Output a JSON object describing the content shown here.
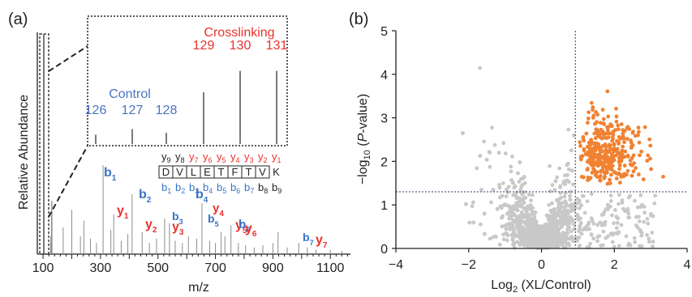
{
  "chart_data": [
    {
      "panel": "(a)",
      "type": "bar",
      "xlabel": "m/z",
      "ylabel": "Relative Abundance",
      "xlim": [
        80,
        1170
      ],
      "xticks": [
        100,
        300,
        500,
        700,
        900,
        1100
      ],
      "peaks": [
        {
          "mz": 126,
          "rel": 0.05
        },
        {
          "mz": 127,
          "rel": 0.08
        },
        {
          "mz": 128,
          "rel": 0.06
        },
        {
          "mz": 129,
          "rel": 0.17
        },
        {
          "mz": 130,
          "rel": 0.24
        },
        {
          "mz": 131,
          "rel": 0.24
        },
        {
          "mz": 170,
          "rel": 0.12
        },
        {
          "mz": 200,
          "rel": 0.2
        },
        {
          "mz": 230,
          "rel": 0.08
        },
        {
          "mz": 242,
          "rel": 0.15
        },
        {
          "mz": 265,
          "rel": 0.07
        },
        {
          "mz": 286,
          "rel": 0.05
        },
        {
          "mz": 309,
          "rel": 0.4
        },
        {
          "mz": 336,
          "rel": 0.11
        },
        {
          "mz": 346,
          "rel": 0.18
        },
        {
          "mz": 372,
          "rel": 0.06
        },
        {
          "mz": 395,
          "rel": 0.09
        },
        {
          "mz": 410,
          "rel": 0.27
        },
        {
          "mz": 445,
          "rel": 0.1
        },
        {
          "mz": 470,
          "rel": 0.05
        },
        {
          "mz": 495,
          "rel": 0.07
        },
        {
          "mz": 523,
          "rel": 0.16
        },
        {
          "mz": 540,
          "rel": 0.14
        },
        {
          "mz": 560,
          "rel": 0.06
        },
        {
          "mz": 585,
          "rel": 0.05
        },
        {
          "mz": 606,
          "rel": 0.08
        },
        {
          "mz": 635,
          "rel": 0.07
        },
        {
          "mz": 653,
          "rel": 0.23
        },
        {
          "mz": 680,
          "rel": 0.06
        },
        {
          "mz": 700,
          "rel": 0.05
        },
        {
          "mz": 720,
          "rel": 0.1
        },
        {
          "mz": 733,
          "rel": 0.08
        },
        {
          "mz": 754,
          "rel": 0.13
        },
        {
          "mz": 780,
          "rel": 0.05
        },
        {
          "mz": 805,
          "rel": 0.04
        },
        {
          "mz": 835,
          "rel": 0.03
        },
        {
          "mz": 865,
          "rel": 0.04
        },
        {
          "mz": 900,
          "rel": 0.05
        },
        {
          "mz": 918,
          "rel": 0.1
        },
        {
          "mz": 950,
          "rel": 0.03
        },
        {
          "mz": 990,
          "rel": 0.05
        },
        {
          "mz": 1020,
          "rel": 0.03
        },
        {
          "mz": 1050,
          "rel": 0.02
        },
        {
          "mz": 1100,
          "rel": 0.02
        },
        {
          "mz": 1140,
          "rel": 0.015
        }
      ],
      "fragment_labels": [
        {
          "ion": "b",
          "sub": "1",
          "color": "#3a73c4"
        },
        {
          "ion": "y",
          "sub": "1",
          "color": "#e8322c"
        },
        {
          "ion": "b",
          "sub": "2",
          "color": "#3a73c4"
        },
        {
          "ion": "y",
          "sub": "2",
          "color": "#e8322c"
        },
        {
          "ion": "b",
          "sub": "3",
          "color": "#3a73c4"
        },
        {
          "ion": "y",
          "sub": "3",
          "color": "#e8322c"
        },
        {
          "ion": "b",
          "sub": "4",
          "color": "#3a73c4"
        },
        {
          "ion": "y",
          "sub": "4",
          "color": "#e8322c"
        },
        {
          "ion": "b",
          "sub": "5",
          "color": "#3a73c4"
        },
        {
          "ion": "y",
          "sub": "5",
          "color": "#e8322c"
        },
        {
          "ion": "b",
          "sub": "6",
          "color": "#3a73c4"
        },
        {
          "ion": "y",
          "sub": "6",
          "color": "#e8322c"
        },
        {
          "ion": "b",
          "sub": "7",
          "color": "#3a73c4"
        },
        {
          "ion": "y",
          "sub": "7",
          "color": "#e8322c"
        }
      ],
      "sequence": [
        "D",
        "V",
        "L",
        "E",
        "T",
        "F",
        "T",
        "V",
        "K"
      ],
      "y_ions": [
        {
          "ion": "y",
          "sub": "9",
          "color": "#222222"
        },
        {
          "ion": "y",
          "sub": "8",
          "color": "#222222"
        },
        {
          "ion": "y",
          "sub": "7",
          "color": "#e8322c"
        },
        {
          "ion": "y",
          "sub": "6",
          "color": "#e8322c"
        },
        {
          "ion": "y",
          "sub": "5",
          "color": "#e8322c"
        },
        {
          "ion": "y",
          "sub": "4",
          "color": "#e8322c"
        },
        {
          "ion": "y",
          "sub": "3",
          "color": "#e8322c"
        },
        {
          "ion": "y",
          "sub": "2",
          "color": "#e8322c"
        },
        {
          "ion": "y",
          "sub": "1",
          "color": "#e8322c"
        }
      ],
      "b_ions": [
        {
          "ion": "b",
          "sub": "1",
          "color": "#3a73c4"
        },
        {
          "ion": "b",
          "sub": "2",
          "color": "#3a73c4"
        },
        {
          "ion": "b",
          "sub": "3",
          "color": "#3a73c4"
        },
        {
          "ion": "b",
          "sub": "4",
          "color": "#3a73c4"
        },
        {
          "ion": "b",
          "sub": "5",
          "color": "#3a73c4"
        },
        {
          "ion": "b",
          "sub": "6",
          "color": "#3a73c4"
        },
        {
          "ion": "b",
          "sub": "7",
          "color": "#3a73c4"
        },
        {
          "ion": "b",
          "sub": "8",
          "color": "#222222"
        },
        {
          "ion": "b",
          "sub": "9",
          "color": "#222222"
        }
      ],
      "inset": {
        "control_label": "Control",
        "crosslinking_label": "Crosslinking",
        "control_channels": [
          "126",
          "127",
          "128"
        ],
        "crosslinking_channels": [
          "129",
          "130",
          "131"
        ],
        "control_values": [
          0.1,
          0.16,
          0.12
        ],
        "crosslinking_values": [
          0.55,
          0.78,
          0.78
        ],
        "control_color": "#4a74c0",
        "crosslinking_color": "#e8322c"
      }
    },
    {
      "panel": "(b)",
      "type": "scatter",
      "xlabel": "Log2 (XL/Control)",
      "ylabel": "-log10 (P-value)",
      "xlim": [
        -4,
        4
      ],
      "ylim": [
        0,
        5
      ],
      "xticks": [
        -4,
        -2,
        0,
        2,
        4
      ],
      "yticks": [
        0,
        1,
        2,
        3,
        4,
        5
      ],
      "x_threshold": 0.93,
      "y_threshold": 1.3,
      "colors": {
        "background": "#c8c8c8",
        "significant": "#f08232"
      },
      "approx_point_counts": {
        "grey": 1600,
        "orange": 330
      }
    }
  ]
}
